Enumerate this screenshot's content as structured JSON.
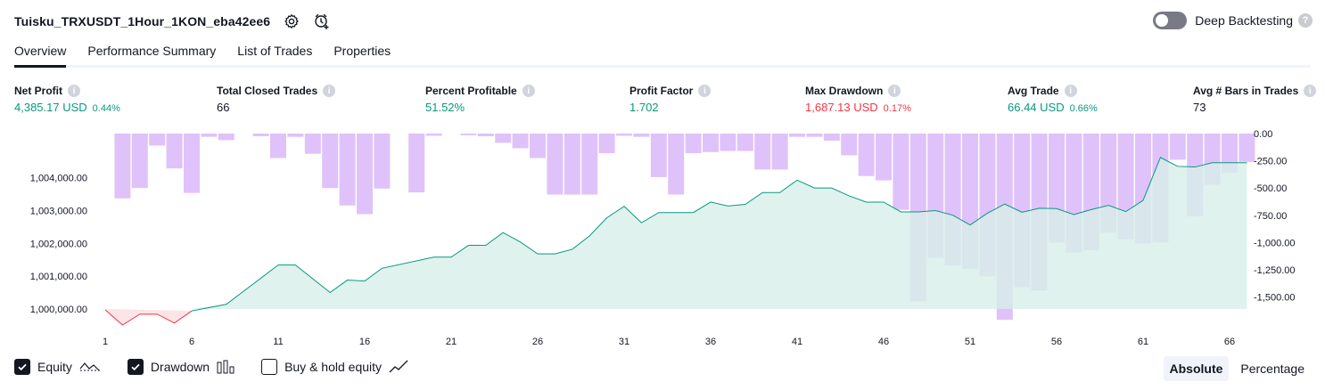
{
  "header": {
    "strategy_name": "Tuisku_TRXUSDT_1Hour_1KON_eba42ee6",
    "settings_icon": "gear-icon",
    "alert_icon": "add-alert-icon",
    "deep_backtesting_label": "Deep Backtesting",
    "deep_backtesting_enabled": false
  },
  "tabs": [
    {
      "label": "Overview",
      "active": true
    },
    {
      "label": "Performance Summary",
      "active": false
    },
    {
      "label": "List of Trades",
      "active": false
    },
    {
      "label": "Properties",
      "active": false
    }
  ],
  "metrics": [
    {
      "label": "Net Profit",
      "value": "4,385.17 USD",
      "pct": "0.44%",
      "color": "#089981"
    },
    {
      "label": "Total Closed Trades",
      "value": "66",
      "pct": "",
      "color": "#131722"
    },
    {
      "label": "Percent Profitable",
      "value": "51.52%",
      "pct": "",
      "color": "#089981"
    },
    {
      "label": "Profit Factor",
      "value": "1.702",
      "pct": "",
      "color": "#089981"
    },
    {
      "label": "Max Drawdown",
      "value": "1,687.13 USD",
      "pct": "0.17%",
      "color": "#f23645"
    },
    {
      "label": "Avg Trade",
      "value": "66.44 USD",
      "pct": "0.66%",
      "color": "#089981"
    },
    {
      "label": "Avg # Bars in Trades",
      "value": "73",
      "pct": "",
      "color": "#131722"
    }
  ],
  "chart_data": {
    "type": "area",
    "left_axis_ticks": [
      "1,004,000.00",
      "1,003,000.00",
      "1,002,000.00",
      "1,001,000.00",
      "1,000,000.00"
    ],
    "left_axis_range": [
      999700,
      1005350
    ],
    "right_axis_ticks": [
      "0.00",
      "-250.00",
      "-500.00",
      "-750.00",
      "-1,000.00",
      "-1,250.00",
      "-1,500.00"
    ],
    "right_axis_range": [
      -1700,
      0
    ],
    "x_ticks": [
      "1",
      "6",
      "11",
      "16",
      "21",
      "26",
      "31",
      "36",
      "41",
      "46",
      "51",
      "56",
      "61",
      "66"
    ],
    "x_range": [
      1,
      67
    ],
    "colors": {
      "equity_line": "#089981",
      "equity_negative": "#f23645",
      "equity_fill": "#d7efe8",
      "drawdown_bar": "#dfc2fa"
    },
    "series": [
      {
        "name": "Equity",
        "x": [
          1,
          2,
          3,
          4,
          5,
          6,
          8,
          11,
          12,
          14,
          15,
          16,
          17,
          20,
          21,
          22,
          23,
          24,
          25,
          26,
          27,
          28,
          29,
          30,
          31,
          32,
          33,
          34,
          35,
          36,
          37,
          38,
          39,
          40,
          41,
          42,
          43,
          44,
          45,
          46,
          47,
          48,
          49,
          50,
          51,
          52,
          53,
          54,
          55,
          56,
          57,
          58,
          59,
          60,
          61,
          62,
          63,
          64,
          65,
          66,
          67
        ],
        "values": [
          999970,
          999510,
          999840,
          999840,
          999570,
          999940,
          1000140,
          1001340,
          1001340,
          1000500,
          1000880,
          1000850,
          1001240,
          1001580,
          1001580,
          1001940,
          1001940,
          1002330,
          1002040,
          1001680,
          1001680,
          1001820,
          1002230,
          1002780,
          1003130,
          1002630,
          1002940,
          1002940,
          1002940,
          1003260,
          1003140,
          1003190,
          1003550,
          1003550,
          1003930,
          1003690,
          1003690,
          1003450,
          1003260,
          1003260,
          1002960,
          1002960,
          1003000,
          1002860,
          1002560,
          1002920,
          1003200,
          1002950,
          1003070,
          1003060,
          1002880,
          1003030,
          1003160,
          1002970,
          1003310,
          1004620,
          1004350,
          1004330,
          1004460,
          1004460,
          1004460
        ]
      },
      {
        "name": "Drawdown",
        "x": [
          2,
          3,
          4,
          5,
          6,
          7,
          8,
          10,
          11,
          12,
          13,
          14,
          15,
          16,
          17,
          19,
          20,
          22,
          23,
          24,
          25,
          26,
          27,
          28,
          29,
          30,
          31,
          32,
          33,
          34,
          35,
          36,
          37,
          38,
          39,
          40,
          41,
          42,
          43,
          44,
          45,
          46,
          47,
          48,
          49,
          50,
          51,
          52,
          53,
          54,
          55,
          56,
          57,
          58,
          59,
          60,
          61,
          62,
          63,
          64,
          65,
          66,
          67
        ],
        "values": [
          -595,
          -500,
          -110,
          -320,
          -545,
          -30,
          -60,
          -25,
          -225,
          -30,
          -185,
          -500,
          -660,
          -740,
          -505,
          -540,
          -20,
          -15,
          -25,
          -85,
          -135,
          -225,
          -560,
          -560,
          -560,
          -180,
          -20,
          -30,
          -400,
          -560,
          -180,
          -170,
          -160,
          -160,
          -330,
          -330,
          -30,
          -30,
          -65,
          -200,
          -390,
          -430,
          -700,
          -1540,
          -1140,
          -1210,
          -1240,
          -1310,
          -1710,
          -1410,
          -1440,
          -1000,
          -1090,
          -1070,
          -910,
          -970,
          -1010,
          -1000,
          -240,
          -760,
          -470,
          -360,
          -260
        ]
      }
    ]
  },
  "legend": {
    "equity": {
      "label": "Equity",
      "checked": true,
      "icon": "equity-line-icon"
    },
    "drawdown": {
      "label": "Drawdown",
      "checked": true,
      "icon": "bars-icon"
    },
    "buy_hold": {
      "label": "Buy & hold equity",
      "checked": false,
      "icon": "trend-line-icon"
    }
  },
  "mode": {
    "absolute": "Absolute",
    "percentage": "Percentage",
    "active": "absolute"
  }
}
